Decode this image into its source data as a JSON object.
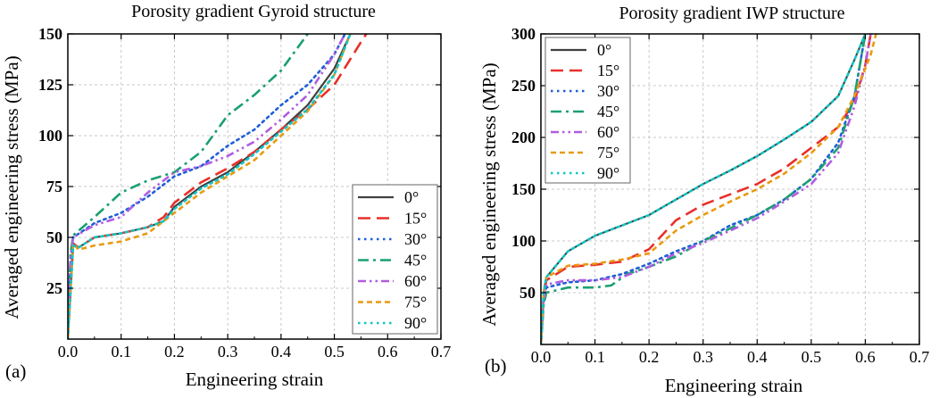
{
  "figure": {
    "panels": [
      "(a)",
      "(b)"
    ]
  },
  "chart_data": [
    {
      "type": "line",
      "panel_label": "(a)",
      "title": "Porosity gradient Gyroid structure",
      "xlabel": "Engineering strain",
      "ylabel": "Averaged engineering stress (MPa)",
      "xlim": [
        0,
        0.7
      ],
      "ylim": [
        0,
        150
      ],
      "xticks": [
        0.0,
        0.1,
        0.2,
        0.3,
        0.4,
        0.5,
        0.6,
        0.7
      ],
      "xtick_labels": [
        "0.0",
        "0.1",
        "0.2",
        "0.3",
        "0.4",
        "0.5",
        "0.6",
        "0.7"
      ],
      "yticks": [
        25,
        50,
        75,
        100,
        125,
        150
      ],
      "ytick_labels": [
        "25",
        "50",
        "75",
        "100",
        "125",
        "150"
      ],
      "grid": true,
      "legend_position": "bottom-right",
      "series": [
        {
          "name": "0°",
          "color": "#404040",
          "dash": "solid",
          "points": [
            [
              0,
              0
            ],
            [
              0.01,
              47
            ],
            [
              0.02,
              45
            ],
            [
              0.05,
              50
            ],
            [
              0.1,
              52
            ],
            [
              0.15,
              55
            ],
            [
              0.18,
              58
            ],
            [
              0.2,
              65
            ],
            [
              0.25,
              75
            ],
            [
              0.3,
              82
            ],
            [
              0.35,
              92
            ],
            [
              0.4,
              103
            ],
            [
              0.45,
              115
            ],
            [
              0.5,
              133
            ],
            [
              0.53,
              150
            ]
          ]
        },
        {
          "name": "15°",
          "color": "#e8302a",
          "dash": "long",
          "points": [
            [
              0,
              0
            ],
            [
              0.01,
              47
            ],
            [
              0.02,
              45
            ],
            [
              0.05,
              50
            ],
            [
              0.1,
              52
            ],
            [
              0.15,
              55
            ],
            [
              0.18,
              60
            ],
            [
              0.2,
              67
            ],
            [
              0.25,
              77
            ],
            [
              0.3,
              84
            ],
            [
              0.35,
              92
            ],
            [
              0.4,
              103
            ],
            [
              0.45,
              113
            ],
            [
              0.5,
              125
            ],
            [
              0.55,
              146
            ],
            [
              0.56,
              150
            ]
          ]
        },
        {
          "name": "30°",
          "color": "#1f5fd6",
          "dash": "dot",
          "points": [
            [
              0,
              0
            ],
            [
              0.005,
              40
            ],
            [
              0.01,
              50
            ],
            [
              0.05,
              57
            ],
            [
              0.1,
              62
            ],
            [
              0.15,
              70
            ],
            [
              0.2,
              80
            ],
            [
              0.25,
              85
            ],
            [
              0.3,
              95
            ],
            [
              0.35,
              103
            ],
            [
              0.4,
              115
            ],
            [
              0.45,
              125
            ],
            [
              0.5,
              140
            ],
            [
              0.52,
              150
            ]
          ]
        },
        {
          "name": "45°",
          "color": "#1aa070",
          "dash": "dashdot",
          "points": [
            [
              0,
              0
            ],
            [
              0.005,
              42
            ],
            [
              0.01,
              51
            ],
            [
              0.05,
              60
            ],
            [
              0.1,
              72
            ],
            [
              0.15,
              78
            ],
            [
              0.2,
              82
            ],
            [
              0.25,
              92
            ],
            [
              0.3,
              110
            ],
            [
              0.35,
              120
            ],
            [
              0.4,
              132
            ],
            [
              0.45,
              150
            ]
          ]
        },
        {
          "name": "60°",
          "color": "#b05de0",
          "dash": "dashdotdot",
          "points": [
            [
              0,
              0
            ],
            [
              0.005,
              40
            ],
            [
              0.01,
              50
            ],
            [
              0.05,
              56
            ],
            [
              0.1,
              60
            ],
            [
              0.15,
              72
            ],
            [
              0.2,
              82
            ],
            [
              0.25,
              85
            ],
            [
              0.3,
              90
            ],
            [
              0.35,
              97
            ],
            [
              0.4,
              108
            ],
            [
              0.45,
              120
            ],
            [
              0.5,
              140
            ],
            [
              0.52,
              150
            ]
          ]
        },
        {
          "name": "75°",
          "color": "#e89a10",
          "dash": "short",
          "points": [
            [
              0,
              0
            ],
            [
              0.01,
              47
            ],
            [
              0.02,
              44
            ],
            [
              0.05,
              46
            ],
            [
              0.1,
              48
            ],
            [
              0.15,
              52
            ],
            [
              0.2,
              62
            ],
            [
              0.25,
              72
            ],
            [
              0.3,
              80
            ],
            [
              0.35,
              88
            ],
            [
              0.4,
              100
            ],
            [
              0.45,
              112
            ],
            [
              0.5,
              130
            ],
            [
              0.53,
              150
            ]
          ]
        },
        {
          "name": "90°",
          "color": "#10c5c5",
          "dash": "dot",
          "points": [
            [
              0,
              0
            ],
            [
              0.01,
              46
            ],
            [
              0.02,
              45
            ],
            [
              0.05,
              50
            ],
            [
              0.1,
              52
            ],
            [
              0.15,
              55
            ],
            [
              0.18,
              58
            ],
            [
              0.2,
              64
            ],
            [
              0.25,
              74
            ],
            [
              0.3,
              81
            ],
            [
              0.35,
              91
            ],
            [
              0.4,
              102
            ],
            [
              0.45,
              113
            ],
            [
              0.5,
              130
            ],
            [
              0.53,
              150
            ]
          ]
        }
      ]
    },
    {
      "type": "line",
      "panel_label": "(b)",
      "title": "Porosity gradient IWP structure",
      "xlabel": "Engineering strain",
      "ylabel": "Averaged engineering stress (MPa)",
      "xlim": [
        0,
        0.7
      ],
      "ylim": [
        0,
        300
      ],
      "xticks": [
        0.0,
        0.1,
        0.2,
        0.3,
        0.4,
        0.5,
        0.6,
        0.7
      ],
      "xtick_labels": [
        "0.0",
        "0.1",
        "0.2",
        "0.3",
        "0.4",
        "0.5",
        "0.6",
        "0.7"
      ],
      "yticks": [
        50,
        100,
        150,
        200,
        250,
        300
      ],
      "ytick_labels": [
        "50",
        "100",
        "150",
        "200",
        "250",
        "300"
      ],
      "grid": true,
      "legend_position": "top-left",
      "series": [
        {
          "name": "0°",
          "color": "#404040",
          "dash": "solid",
          "points": [
            [
              0,
              0
            ],
            [
              0.005,
              50
            ],
            [
              0.01,
              65
            ],
            [
              0.05,
              90
            ],
            [
              0.1,
              105
            ],
            [
              0.15,
              115
            ],
            [
              0.2,
              125
            ],
            [
              0.25,
              140
            ],
            [
              0.3,
              155
            ],
            [
              0.35,
              168
            ],
            [
              0.4,
              182
            ],
            [
              0.45,
              198
            ],
            [
              0.5,
              215
            ],
            [
              0.55,
              240
            ],
            [
              0.58,
              275
            ],
            [
              0.6,
              300
            ]
          ]
        },
        {
          "name": "15°",
          "color": "#e8302a",
          "dash": "long",
          "points": [
            [
              0,
              0
            ],
            [
              0.005,
              45
            ],
            [
              0.01,
              62
            ],
            [
              0.05,
              75
            ],
            [
              0.1,
              77
            ],
            [
              0.15,
              80
            ],
            [
              0.2,
              92
            ],
            [
              0.25,
              120
            ],
            [
              0.3,
              135
            ],
            [
              0.35,
              145
            ],
            [
              0.4,
              155
            ],
            [
              0.45,
              170
            ],
            [
              0.5,
              190
            ],
            [
              0.55,
              210
            ],
            [
              0.58,
              235
            ],
            [
              0.6,
              270
            ],
            [
              0.61,
              300
            ]
          ]
        },
        {
          "name": "30°",
          "color": "#1f5fd6",
          "dash": "dot",
          "points": [
            [
              0,
              0
            ],
            [
              0.005,
              40
            ],
            [
              0.01,
              55
            ],
            [
              0.05,
              60
            ],
            [
              0.1,
              62
            ],
            [
              0.15,
              68
            ],
            [
              0.2,
              78
            ],
            [
              0.25,
              90
            ],
            [
              0.3,
              100
            ],
            [
              0.35,
              115
            ],
            [
              0.4,
              125
            ],
            [
              0.45,
              140
            ],
            [
              0.5,
              160
            ],
            [
              0.55,
              195
            ],
            [
              0.58,
              240
            ],
            [
              0.6,
              300
            ]
          ]
        },
        {
          "name": "45°",
          "color": "#1aa070",
          "dash": "dashdot",
          "points": [
            [
              0,
              0
            ],
            [
              0.005,
              38
            ],
            [
              0.01,
              50
            ],
            [
              0.05,
              55
            ],
            [
              0.1,
              55
            ],
            [
              0.13,
              57
            ],
            [
              0.16,
              68
            ],
            [
              0.2,
              75
            ],
            [
              0.25,
              85
            ],
            [
              0.3,
              100
            ],
            [
              0.35,
              112
            ],
            [
              0.4,
              125
            ],
            [
              0.45,
              140
            ],
            [
              0.5,
              160
            ],
            [
              0.55,
              190
            ],
            [
              0.58,
              240
            ],
            [
              0.6,
              300
            ]
          ]
        },
        {
          "name": "60°",
          "color": "#b05de0",
          "dash": "dashdotdot",
          "points": [
            [
              0,
              0
            ],
            [
              0.005,
              42
            ],
            [
              0.01,
              58
            ],
            [
              0.05,
              62
            ],
            [
              0.1,
              62
            ],
            [
              0.15,
              65
            ],
            [
              0.2,
              75
            ],
            [
              0.25,
              88
            ],
            [
              0.3,
              98
            ],
            [
              0.35,
              110
            ],
            [
              0.4,
              122
            ],
            [
              0.45,
              138
            ],
            [
              0.5,
              155
            ],
            [
              0.55,
              185
            ],
            [
              0.58,
              230
            ],
            [
              0.6,
              270
            ],
            [
              0.61,
              300
            ]
          ]
        },
        {
          "name": "75°",
          "color": "#e89a10",
          "dash": "short",
          "points": [
            [
              0,
              0
            ],
            [
              0.005,
              50
            ],
            [
              0.01,
              65
            ],
            [
              0.05,
              76
            ],
            [
              0.1,
              78
            ],
            [
              0.15,
              82
            ],
            [
              0.2,
              88
            ],
            [
              0.25,
              110
            ],
            [
              0.3,
              125
            ],
            [
              0.35,
              138
            ],
            [
              0.4,
              150
            ],
            [
              0.45,
              165
            ],
            [
              0.5,
              185
            ],
            [
              0.55,
              210
            ],
            [
              0.58,
              240
            ],
            [
              0.61,
              280
            ],
            [
              0.62,
              300
            ]
          ]
        },
        {
          "name": "90°",
          "color": "#10c5c5",
          "dash": "dot",
          "points": [
            [
              0,
              0
            ],
            [
              0.005,
              50
            ],
            [
              0.01,
              65
            ],
            [
              0.05,
              90
            ],
            [
              0.1,
              105
            ],
            [
              0.15,
              115
            ],
            [
              0.2,
              125
            ],
            [
              0.25,
              140
            ],
            [
              0.3,
              155
            ],
            [
              0.35,
              168
            ],
            [
              0.4,
              182
            ],
            [
              0.45,
              198
            ],
            [
              0.5,
              215
            ],
            [
              0.55,
              240
            ],
            [
              0.58,
              275
            ],
            [
              0.6,
              300
            ]
          ]
        }
      ]
    }
  ]
}
